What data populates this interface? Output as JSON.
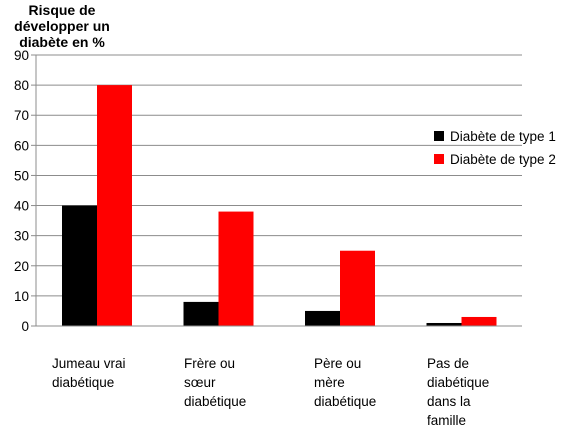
{
  "chart_data": {
    "type": "bar",
    "ylabel_lines": [
      "Risque de",
      "développer un",
      "diabète en %"
    ],
    "ylim": [
      0,
      90
    ],
    "yticks": [
      0,
      10,
      20,
      30,
      40,
      50,
      60,
      70,
      80,
      90
    ],
    "grid": true,
    "legend_position": "right",
    "categories": [
      [
        "Jumeau vrai",
        "diabétique"
      ],
      [
        "Frère ou",
        "sœur",
        "diabétique"
      ],
      [
        "Père ou",
        "mère",
        "diabétique"
      ],
      [
        "Pas de",
        "diabétique",
        "dans la",
        "famille"
      ]
    ],
    "series": [
      {
        "name": "Diabète de type 1",
        "color": "#000000",
        "values": [
          40,
          8,
          5,
          1
        ]
      },
      {
        "name": "Diabète de type 2",
        "color": "#ff0000",
        "values": [
          80,
          38,
          25,
          3
        ]
      }
    ]
  }
}
